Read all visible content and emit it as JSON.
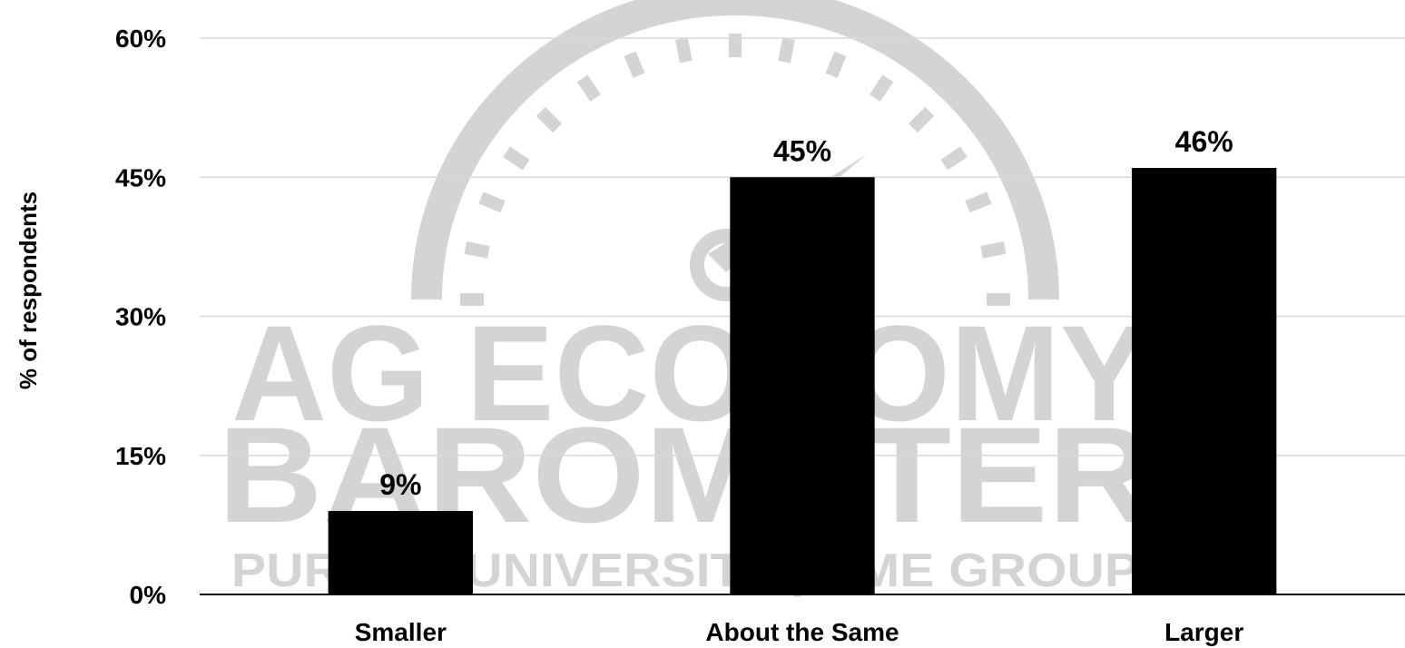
{
  "chart_data": {
    "type": "bar",
    "categories": [
      "Smaller",
      "About the Same",
      "Larger"
    ],
    "values": [
      9,
      45,
      46
    ],
    "value_labels": [
      "9%",
      "45%",
      "46%"
    ],
    "ylabel": "% of respondents",
    "xlabel": "",
    "title": "",
    "ylim": [
      0,
      60
    ],
    "yticks": [
      0,
      15,
      30,
      45,
      60
    ],
    "ytick_labels": [
      "0%",
      "15%",
      "30%",
      "45%",
      "60%"
    ],
    "grid": true,
    "legend": "none",
    "bar_color": "#000000",
    "grid_color": "#d9d9d9"
  },
  "watermark": {
    "line1": "AG ECONOMY",
    "line2": "BAROMETER",
    "line3": "PURDUE UNIVERSITY | CME GROUP",
    "color": "#d4d4d4",
    "icon": "gauge-icon"
  }
}
